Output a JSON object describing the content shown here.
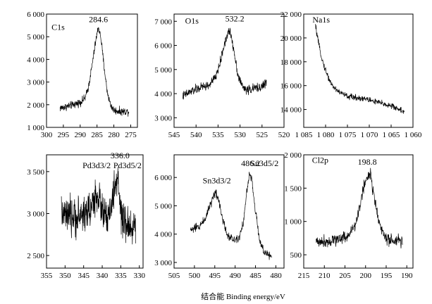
{
  "figure": {
    "x_caption": "结合能 Binding energy/eV"
  },
  "chart_data": [
    {
      "type": "line",
      "panel": "C1s",
      "xlim": [
        300,
        273
      ],
      "ylim": [
        1000,
        6000
      ],
      "x_ticks": [
        300,
        295,
        290,
        285,
        280,
        275
      ],
      "y_ticks": [
        1000,
        2000,
        3000,
        4000,
        5000,
        6000
      ],
      "x_tick_labels": [
        "300",
        "295",
        "290",
        "285",
        "280",
        "275"
      ],
      "y_tick_labels": [
        "1 000",
        "2 000",
        "3 000",
        "4 000",
        "5 000",
        "6 000"
      ],
      "annotations": [
        {
          "text": "C1s",
          "x": 298.5,
          "y": 5300,
          "type": "name"
        },
        {
          "text": "284.6",
          "x": 284.6,
          "y": 5650,
          "type": "peak"
        }
      ],
      "series": [
        {
          "x": [
            296,
            294,
            292,
            290,
            288.5,
            287.5,
            286.5,
            285.5,
            284.6,
            283.8,
            283,
            282,
            281,
            280,
            278,
            276,
            275.5
          ],
          "y": [
            1850,
            1920,
            2000,
            2100,
            2300,
            2800,
            3700,
            4700,
            5450,
            4900,
            3800,
            2600,
            2000,
            1750,
            1700,
            1700,
            1700
          ],
          "noise": 130
        }
      ]
    },
    {
      "type": "line",
      "panel": "O1s",
      "xlim": [
        545,
        520
      ],
      "ylim": [
        2600,
        7300
      ],
      "x_ticks": [
        545,
        540,
        535,
        530,
        525,
        520
      ],
      "y_ticks": [
        3000,
        4000,
        5000,
        6000,
        7000
      ],
      "x_tick_labels": [
        "545",
        "540",
        "535",
        "530",
        "525",
        "520"
      ],
      "y_tick_labels": [
        "3 000",
        "4 000",
        "5 000",
        "6 000",
        "7 000"
      ],
      "annotations": [
        {
          "text": "O1s",
          "x": 542.5,
          "y": 6900,
          "type": "name"
        },
        {
          "text": "532.2",
          "x": 531.2,
          "y": 7000,
          "type": "peak"
        }
      ],
      "series": [
        {
          "x": [
            543,
            541,
            539,
            537,
            535.5,
            534.5,
            533.5,
            532.5,
            532,
            531.2,
            530.5,
            529.5,
            528.5,
            527,
            525,
            524
          ],
          "y": [
            3900,
            4100,
            4250,
            4350,
            4700,
            5300,
            6100,
            6600,
            6400,
            5600,
            4800,
            4300,
            4150,
            4200,
            4300,
            4450
          ],
          "noise": 150
        }
      ]
    },
    {
      "type": "line",
      "panel": "Na1s",
      "xlim": [
        1085,
        1060
      ],
      "ylim": [
        12500,
        22000
      ],
      "x_ticks": [
        1085,
        1080,
        1075,
        1070,
        1065,
        1060
      ],
      "y_ticks": [
        14000,
        16000,
        18000,
        20000,
        22000
      ],
      "x_tick_labels": [
        "1 085",
        "1 080",
        "1 075",
        "1 070",
        "1 065",
        "1 060"
      ],
      "y_tick_labels": [
        "14 000",
        "16 000",
        "18 000",
        "20 000",
        "22 000"
      ],
      "annotations": [
        {
          "text": "Na1s",
          "x": 1083,
          "y": 21300,
          "type": "name"
        }
      ],
      "series": [
        {
          "x": [
            1082.3,
            1081.5,
            1080.5,
            1079.5,
            1078.5,
            1077,
            1075,
            1073,
            1071,
            1069,
            1067,
            1065,
            1063,
            1062
          ],
          "y": [
            21000,
            19300,
            17800,
            16800,
            16000,
            15500,
            15100,
            15000,
            14900,
            14700,
            14500,
            14300,
            14000,
            13800
          ],
          "noise": 200
        }
      ]
    },
    {
      "type": "line",
      "panel": "Pd3d",
      "xlim": [
        355,
        329
      ],
      "ylim": [
        2350,
        3700
      ],
      "x_ticks": [
        355,
        350,
        345,
        340,
        335,
        330
      ],
      "y_ticks": [
        2500,
        3000,
        3500
      ],
      "x_tick_labels": [
        "355",
        "350",
        "345",
        "340",
        "335",
        "330"
      ],
      "y_tick_labels": [
        "2 500",
        "3 000",
        "3 500"
      ],
      "annotations": [
        {
          "text": "Pd3d3/2",
          "x": 341.5,
          "y": 3540,
          "type": "peak"
        },
        {
          "text": "336.0",
          "x": 335.2,
          "y": 3660,
          "type": "peak"
        },
        {
          "text": "Pd3d5/2",
          "x": 333.2,
          "y": 3540,
          "type": "peak"
        }
      ],
      "series": [
        {
          "x": [
            351,
            349,
            347,
            345,
            343,
            341.5,
            340,
            338.5,
            337,
            336,
            335,
            334,
            333,
            332,
            331
          ],
          "y": [
            3000,
            2950,
            2950,
            3000,
            3050,
            3250,
            3050,
            2900,
            3200,
            3450,
            3000,
            2850,
            2850,
            2850,
            2850
          ],
          "noise": 170
        }
      ]
    },
    {
      "type": "line",
      "panel": "Sn3d",
      "xlim": [
        505,
        478
      ],
      "ylim": [
        2800,
        6800
      ],
      "x_ticks": [
        505,
        500,
        495,
        490,
        485,
        480
      ],
      "y_ticks": [
        3000,
        4000,
        5000,
        6000
      ],
      "x_tick_labels": [
        "505",
        "500",
        "495",
        "490",
        "485",
        "480"
      ],
      "y_tick_labels": [
        "3 000",
        "4 000",
        "5 000",
        "6 000"
      ],
      "annotations": [
        {
          "text": "Sn3d3/2",
          "x": 494.5,
          "y": 5800,
          "type": "peak"
        },
        {
          "text": "486.2",
          "x": 486.2,
          "y": 6400,
          "type": "peak"
        },
        {
          "text": "Sn3d5/2",
          "x": 482.8,
          "y": 6400,
          "type": "peak"
        }
      ],
      "series": [
        {
          "x": [
            501,
            499,
            497.5,
            496,
            494.8,
            494,
            493,
            492,
            490.5,
            489,
            488,
            487.2,
            486.5,
            486,
            485,
            484,
            483,
            482,
            481
          ],
          "y": [
            4150,
            4250,
            4500,
            5100,
            5500,
            5200,
            4500,
            4000,
            3800,
            3900,
            4400,
            5400,
            6100,
            6000,
            4800,
            3800,
            3400,
            3250,
            3200
          ],
          "noise": 120
        }
      ]
    },
    {
      "type": "line",
      "panel": "Cl2p",
      "xlim": [
        215,
        188.5
      ],
      "ylim": [
        300,
        2000
      ],
      "x_ticks": [
        215,
        210,
        205,
        200,
        195,
        190
      ],
      "y_ticks": [
        500,
        1000,
        1500,
        2000
      ],
      "x_tick_labels": [
        "215",
        "210",
        "205",
        "200",
        "195",
        "190"
      ],
      "y_tick_labels": [
        "500",
        "1 000",
        "1 500",
        "2 000"
      ],
      "annotations": [
        {
          "text": "Cl2p",
          "x": 213,
          "y": 1880,
          "type": "name"
        },
        {
          "text": "198.8",
          "x": 199.6,
          "y": 1850,
          "type": "peak"
        }
      ],
      "series": [
        {
          "x": [
            212,
            210,
            208,
            206,
            204,
            202.5,
            201.5,
            200.5,
            199.5,
            198.8,
            198,
            197,
            196,
            195,
            194,
            192,
            191
          ],
          "y": [
            700,
            700,
            720,
            750,
            800,
            950,
            1200,
            1500,
            1700,
            1700,
            1400,
            1050,
            850,
            750,
            700,
            700,
            700
          ],
          "noise": 70
        }
      ]
    }
  ]
}
